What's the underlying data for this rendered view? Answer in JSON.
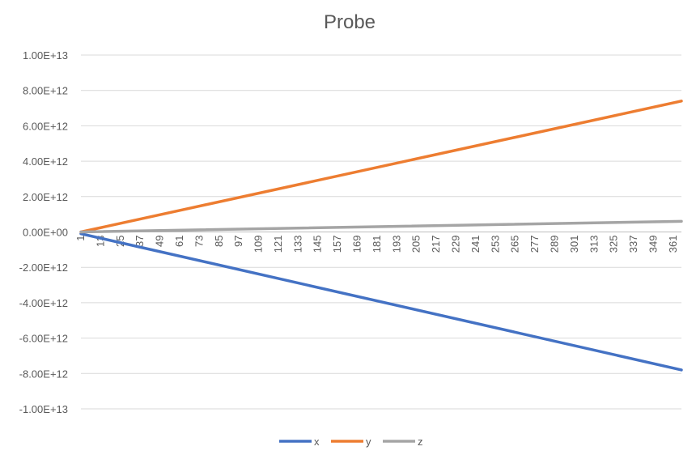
{
  "chart_data": {
    "type": "line",
    "title": "Probe",
    "xlabel": "",
    "ylabel": "",
    "x_start": 1,
    "x_end": 366,
    "x_tick_labels": [
      "1",
      "13",
      "25",
      "37",
      "49",
      "61",
      "73",
      "85",
      "97",
      "109",
      "121",
      "133",
      "145",
      "157",
      "169",
      "181",
      "193",
      "205",
      "217",
      "229",
      "241",
      "253",
      "265",
      "277",
      "289",
      "301",
      "313",
      "325",
      "337",
      "349",
      "361"
    ],
    "y_tick_labels": [
      "1.00E+13",
      "8.00E+12",
      "6.00E+12",
      "4.00E+12",
      "2.00E+12",
      "0.00E+00",
      "-2.00E+12",
      "-4.00E+12",
      "-6.00E+12",
      "-8.00E+12",
      "-1.00E+13"
    ],
    "ylim": [
      -10000000000000,
      10000000000000
    ],
    "grid": true,
    "legend_position": "bottom",
    "series": [
      {
        "name": "x",
        "color": "#4472C4",
        "x": [
          1,
          366
        ],
        "values": [
          -100000000000,
          -7800000000000
        ]
      },
      {
        "name": "y",
        "color": "#ED7D31",
        "x": [
          1,
          366
        ],
        "values": [
          0,
          7400000000000
        ]
      },
      {
        "name": "z",
        "color": "#A5A5A5",
        "x": [
          1,
          366
        ],
        "values": [
          0,
          600000000000
        ]
      }
    ]
  }
}
